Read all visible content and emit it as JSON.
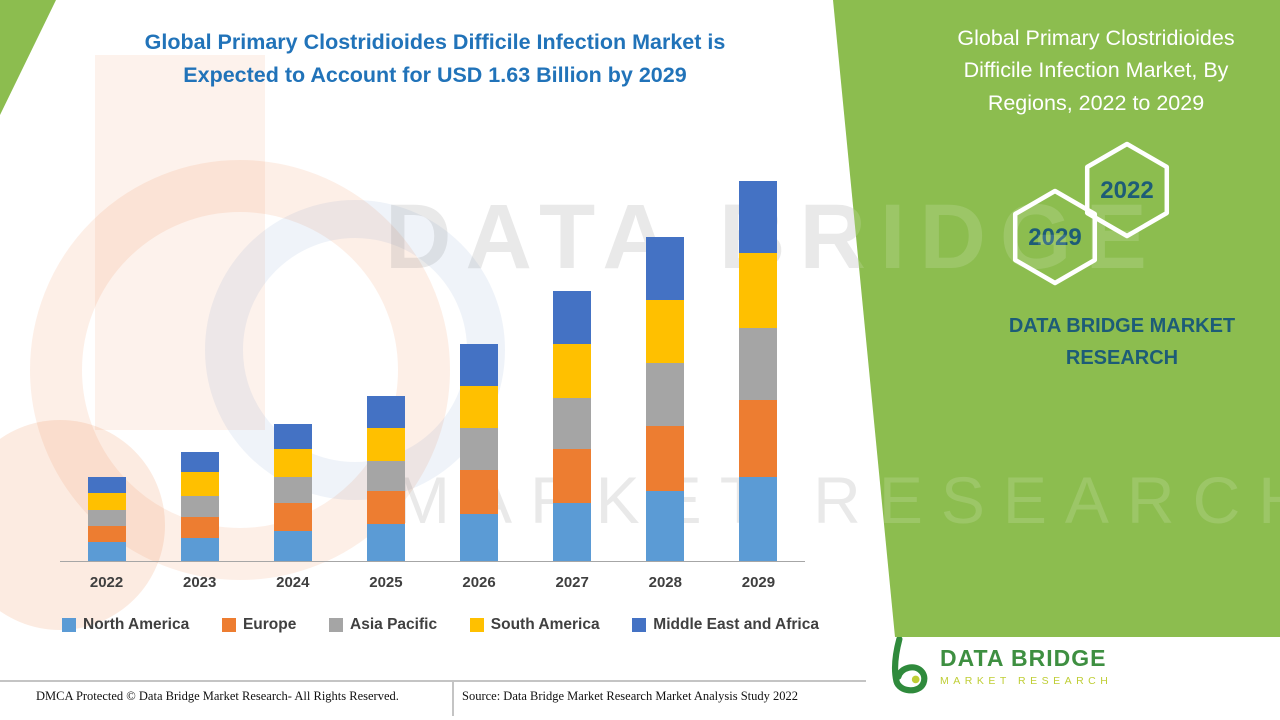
{
  "colors": {
    "brand_green": "#8CBD4F",
    "title_blue": "#2173B9",
    "teal_text": "#1D5C77",
    "label_gray": "#404040",
    "logo_green": "#3E8F41",
    "logo_yellow_green": "#BFCE35"
  },
  "header": {
    "title_line1": "Global Primary Clostridioides Difficile Infection Market is",
    "title_line2": "Expected to Account for USD 1.63 Billion by 2029"
  },
  "right_panel": {
    "title_line1": "Global Primary Clostridioides",
    "title_line2": "Difficile Infection Market, By",
    "title_line3": "Regions, 2022 to 2029",
    "badge_top_right": "2022",
    "badge_bottom_left": "2029",
    "brand_line1": "DATA BRIDGE MARKET",
    "brand_line2": "RESEARCH"
  },
  "watermark": {
    "line1": "DATA BRIDGE",
    "line2": "MARKET RESEARCH"
  },
  "chart_data": {
    "type": "bar",
    "subtype": "stacked-column",
    "title": "Global Primary Clostridioides Difficile Infection Market is Expected to Account for USD 1.63 Billion by 2029",
    "unit": "USD Billion",
    "categories": [
      "2022",
      "2023",
      "2024",
      "2025",
      "2026",
      "2027",
      "2028",
      "2029"
    ],
    "totals": [
      0.36,
      0.47,
      0.59,
      0.71,
      0.93,
      1.16,
      1.39,
      1.63
    ],
    "series": [
      {
        "name": "North America",
        "color": "#5B9BD5",
        "values": [
          0.08,
          0.1,
          0.13,
          0.16,
          0.2,
          0.25,
          0.3,
          0.36
        ]
      },
      {
        "name": "Europe",
        "color": "#ED7D31",
        "values": [
          0.07,
          0.09,
          0.12,
          0.14,
          0.19,
          0.23,
          0.28,
          0.33
        ]
      },
      {
        "name": "Asia Pacific",
        "color": "#A5A5A5",
        "values": [
          0.07,
          0.09,
          0.11,
          0.13,
          0.18,
          0.22,
          0.27,
          0.31
        ]
      },
      {
        "name": "South America",
        "color": "#FFC000",
        "values": [
          0.07,
          0.1,
          0.12,
          0.14,
          0.18,
          0.23,
          0.27,
          0.32
        ]
      },
      {
        "name": "Middle East and Africa",
        "color": "#4472C4",
        "values": [
          0.07,
          0.09,
          0.11,
          0.14,
          0.18,
          0.23,
          0.27,
          0.31
        ]
      }
    ],
    "xlabel": "",
    "ylabel": "",
    "ylim": [
      0,
      1.66
    ],
    "grid": false,
    "legend_position": "bottom"
  },
  "footer": {
    "dmca": "DMCA Protected © Data Bridge Market Research- All Rights Reserved.",
    "source": "Source: Data Bridge Market Research Market Analysis Study 2022"
  },
  "logo": {
    "title": "DATA BRIDGE",
    "subtitle": "MARKET RESEARCH"
  }
}
